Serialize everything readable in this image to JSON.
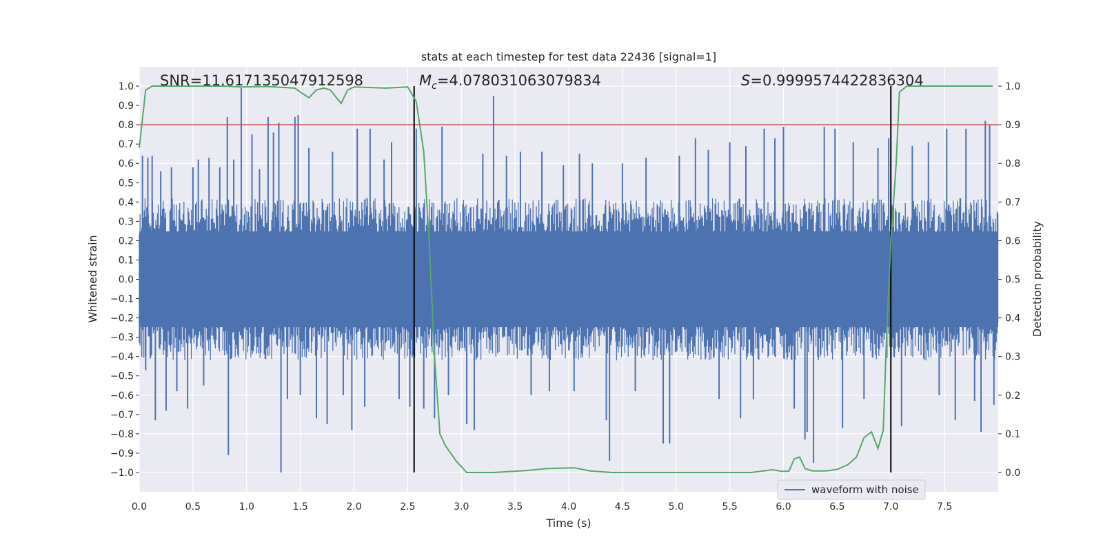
{
  "chart_data": {
    "type": "line",
    "title": "stats at each timestep for test data 22436 [signal=1]",
    "xlabel": "Time (s)",
    "ylabel_left": "Whitened strain",
    "ylabel_right": "Detection probability",
    "xlim": [
      0.0,
      8.0
    ],
    "ylim_left": [
      -1.1,
      1.1
    ],
    "ylim_right": [
      -0.05,
      1.05
    ],
    "x_ticks": [
      "0.0",
      "0.5",
      "1.0",
      "1.5",
      "2.0",
      "2.5",
      "3.0",
      "3.5",
      "4.0",
      "4.5",
      "5.0",
      "5.5",
      "6.0",
      "6.5",
      "7.0",
      "7.5"
    ],
    "x_tick_values": [
      0,
      0.5,
      1,
      1.5,
      2,
      2.5,
      3,
      3.5,
      4,
      4.5,
      5,
      5.5,
      6,
      6.5,
      7,
      7.5
    ],
    "y_left_ticks": [
      "1.0",
      "0.9",
      "0.8",
      "0.7",
      "0.6",
      "0.5",
      "0.4",
      "0.3",
      "0.2",
      "0.1",
      "0.0",
      "−0.1",
      "−0.2",
      "−0.3",
      "−0.4",
      "−0.5",
      "−0.6",
      "−0.7",
      "−0.8",
      "−0.9",
      "−1.0"
    ],
    "y_left_tick_values": [
      1,
      0.9,
      0.8,
      0.7,
      0.6,
      0.5,
      0.4,
      0.3,
      0.2,
      0.1,
      0,
      -0.1,
      -0.2,
      -0.3,
      -0.4,
      -0.5,
      -0.6,
      -0.7,
      -0.8,
      -0.9,
      -1
    ],
    "y_right_ticks": [
      "1.0",
      "0.9",
      "0.8",
      "0.7",
      "0.6",
      "0.5",
      "0.4",
      "0.3",
      "0.2",
      "0.1",
      "0.0"
    ],
    "y_right_tick_values": [
      1,
      0.9,
      0.8,
      0.7,
      0.6,
      0.5,
      0.4,
      0.3,
      0.2,
      0.1,
      0
    ],
    "annotations": {
      "snr": "SNR=11.617135047912598",
      "mc_symbol": "M",
      "mc_subscript": "c",
      "mc_value": "=4.078031063079834",
      "s_symbol": "S",
      "s_value": "=0.9999574422836304"
    },
    "legend": {
      "label": "waveform with noise",
      "placement": "lower-right"
    },
    "vertical_lines": [
      2.56,
      7.0
    ],
    "vertical_line_range": [
      -1.0,
      1.0
    ],
    "threshold_right": 0.9,
    "colors": {
      "waveform": "#4c72b0",
      "probability": "#55a868",
      "threshold": "#c44e52",
      "vline": "#000000",
      "background": "#eaeaf2",
      "grid": "#ffffff"
    },
    "series": [
      {
        "name": "waveform with noise",
        "axis": "left",
        "style": "dense-noise",
        "envelope_upper": 0.4,
        "envelope_lower": -0.4,
        "spikes": [
          {
            "x": 0.03,
            "y": 0.64
          },
          {
            "x": 0.06,
            "y": -0.47
          },
          {
            "x": 0.08,
            "y": 0.63
          },
          {
            "x": 0.12,
            "y": 0.64
          },
          {
            "x": 0.15,
            "y": -0.73
          },
          {
            "x": 0.2,
            "y": 0.56
          },
          {
            "x": 0.25,
            "y": -0.68
          },
          {
            "x": 0.3,
            "y": 0.58
          },
          {
            "x": 0.35,
            "y": -0.58
          },
          {
            "x": 0.45,
            "y": -0.67
          },
          {
            "x": 0.5,
            "y": 0.58
          },
          {
            "x": 0.55,
            "y": 0.62
          },
          {
            "x": 0.6,
            "y": -0.55
          },
          {
            "x": 0.65,
            "y": 0.63
          },
          {
            "x": 0.75,
            "y": 0.58
          },
          {
            "x": 0.82,
            "y": 0.84
          },
          {
            "x": 0.83,
            "y": -0.91
          },
          {
            "x": 0.88,
            "y": 0.62
          },
          {
            "x": 0.95,
            "y": 0.99
          },
          {
            "x": 1.05,
            "y": 0.75
          },
          {
            "x": 1.12,
            "y": 0.57
          },
          {
            "x": 1.2,
            "y": 0.84
          },
          {
            "x": 1.25,
            "y": 0.76
          },
          {
            "x": 1.3,
            "y": 0.81
          },
          {
            "x": 1.32,
            "y": -1.0
          },
          {
            "x": 1.38,
            "y": -0.62
          },
          {
            "x": 1.45,
            "y": 0.84
          },
          {
            "x": 1.48,
            "y": 0.85
          },
          {
            "x": 1.5,
            "y": -0.6
          },
          {
            "x": 1.58,
            "y": 0.68
          },
          {
            "x": 1.65,
            "y": -0.72
          },
          {
            "x": 1.75,
            "y": -0.75
          },
          {
            "x": 1.8,
            "y": 0.66
          },
          {
            "x": 1.9,
            "y": -0.6
          },
          {
            "x": 1.98,
            "y": -0.78
          },
          {
            "x": 2.03,
            "y": 0.78
          },
          {
            "x": 2.1,
            "y": -0.66
          },
          {
            "x": 2.15,
            "y": 0.78
          },
          {
            "x": 2.28,
            "y": 0.62
          },
          {
            "x": 2.35,
            "y": 0.71
          },
          {
            "x": 2.42,
            "y": -0.62
          },
          {
            "x": 2.52,
            "y": -0.66
          },
          {
            "x": 2.58,
            "y": 0.78
          },
          {
            "x": 2.65,
            "y": -0.67
          },
          {
            "x": 2.75,
            "y": -0.72
          },
          {
            "x": 2.82,
            "y": 0.79
          },
          {
            "x": 2.88,
            "y": -0.6
          },
          {
            "x": 3.05,
            "y": -0.75
          },
          {
            "x": 3.12,
            "y": -0.78
          },
          {
            "x": 3.2,
            "y": 0.65
          },
          {
            "x": 3.3,
            "y": 0.95
          },
          {
            "x": 3.42,
            "y": 0.64
          },
          {
            "x": 3.55,
            "y": 0.66
          },
          {
            "x": 3.65,
            "y": -0.6
          },
          {
            "x": 3.75,
            "y": 0.66
          },
          {
            "x": 3.82,
            "y": -0.58
          },
          {
            "x": 3.95,
            "y": 0.59
          },
          {
            "x": 4.05,
            "y": -0.58
          },
          {
            "x": 4.1,
            "y": 0.65
          },
          {
            "x": 4.22,
            "y": 0.6
          },
          {
            "x": 4.35,
            "y": -0.73
          },
          {
            "x": 4.38,
            "y": -0.94
          },
          {
            "x": 4.5,
            "y": 0.6
          },
          {
            "x": 4.62,
            "y": -0.58
          },
          {
            "x": 4.72,
            "y": 0.63
          },
          {
            "x": 4.88,
            "y": -0.85
          },
          {
            "x": 4.94,
            "y": -0.85
          },
          {
            "x": 5.03,
            "y": 0.64
          },
          {
            "x": 5.18,
            "y": 0.73
          },
          {
            "x": 5.3,
            "y": 0.67
          },
          {
            "x": 5.4,
            "y": -0.62
          },
          {
            "x": 5.5,
            "y": 0.71
          },
          {
            "x": 5.6,
            "y": -0.72
          },
          {
            "x": 5.65,
            "y": 0.69
          },
          {
            "x": 5.72,
            "y": -0.62
          },
          {
            "x": 5.82,
            "y": 0.78
          },
          {
            "x": 5.92,
            "y": 0.73
          },
          {
            "x": 6.0,
            "y": 0.79
          },
          {
            "x": 6.1,
            "y": -0.67
          },
          {
            "x": 6.2,
            "y": -0.83
          },
          {
            "x": 6.22,
            "y": -0.79
          },
          {
            "x": 6.28,
            "y": -0.95
          },
          {
            "x": 6.38,
            "y": 0.79
          },
          {
            "x": 6.48,
            "y": 0.78
          },
          {
            "x": 6.55,
            "y": -0.77
          },
          {
            "x": 6.65,
            "y": 0.71
          },
          {
            "x": 6.75,
            "y": -0.62
          },
          {
            "x": 6.88,
            "y": 0.68
          },
          {
            "x": 6.98,
            "y": 0.73
          },
          {
            "x": 7.1,
            "y": -0.76
          },
          {
            "x": 7.2,
            "y": 0.69
          },
          {
            "x": 7.35,
            "y": 0.71
          },
          {
            "x": 7.45,
            "y": -0.6
          },
          {
            "x": 7.52,
            "y": 0.78
          },
          {
            "x": 7.6,
            "y": -0.73
          },
          {
            "x": 7.7,
            "y": 0.78
          },
          {
            "x": 7.78,
            "y": -0.63
          },
          {
            "x": 7.84,
            "y": -0.79
          },
          {
            "x": 7.88,
            "y": 0.82
          },
          {
            "x": 7.92,
            "y": 0.8
          },
          {
            "x": 7.96,
            "y": -0.65
          }
        ]
      },
      {
        "name": "detection probability",
        "axis": "right",
        "style": "line",
        "points": [
          [
            0.0,
            0.84
          ],
          [
            0.06,
            0.99
          ],
          [
            0.12,
            1.0
          ],
          [
            0.5,
            1.0
          ],
          [
            0.8,
            1.0
          ],
          [
            0.95,
            0.998
          ],
          [
            1.2,
            0.999
          ],
          [
            1.45,
            0.995
          ],
          [
            1.5,
            0.985
          ],
          [
            1.58,
            0.97
          ],
          [
            1.65,
            0.99
          ],
          [
            1.72,
            0.995
          ],
          [
            1.78,
            0.99
          ],
          [
            1.88,
            0.955
          ],
          [
            1.94,
            0.99
          ],
          [
            2.0,
            0.998
          ],
          [
            2.3,
            0.995
          ],
          [
            2.5,
            0.998
          ],
          [
            2.58,
            0.96
          ],
          [
            2.65,
            0.83
          ],
          [
            2.7,
            0.6
          ],
          [
            2.75,
            0.3
          ],
          [
            2.8,
            0.1
          ],
          [
            2.85,
            0.07
          ],
          [
            2.95,
            0.03
          ],
          [
            3.05,
            0.0
          ],
          [
            3.3,
            0.0
          ],
          [
            3.6,
            0.005
          ],
          [
            3.8,
            0.01
          ],
          [
            4.05,
            0.012
          ],
          [
            4.2,
            0.004
          ],
          [
            4.4,
            0.0
          ],
          [
            4.9,
            0.0
          ],
          [
            5.1,
            0.0
          ],
          [
            5.7,
            0.0
          ],
          [
            5.9,
            0.007
          ],
          [
            5.98,
            0.003
          ],
          [
            6.05,
            0.003
          ],
          [
            6.1,
            0.035
          ],
          [
            6.15,
            0.04
          ],
          [
            6.2,
            0.01
          ],
          [
            6.27,
            0.004
          ],
          [
            6.4,
            0.004
          ],
          [
            6.5,
            0.008
          ],
          [
            6.6,
            0.02
          ],
          [
            6.68,
            0.04
          ],
          [
            6.75,
            0.09
          ],
          [
            6.82,
            0.105
          ],
          [
            6.88,
            0.062
          ],
          [
            6.93,
            0.11
          ],
          [
            6.96,
            0.35
          ],
          [
            7.0,
            0.6
          ],
          [
            7.05,
            0.8
          ],
          [
            7.08,
            0.985
          ],
          [
            7.15,
            1.0
          ],
          [
            7.5,
            1.0
          ],
          [
            7.95,
            1.0
          ]
        ]
      }
    ]
  }
}
